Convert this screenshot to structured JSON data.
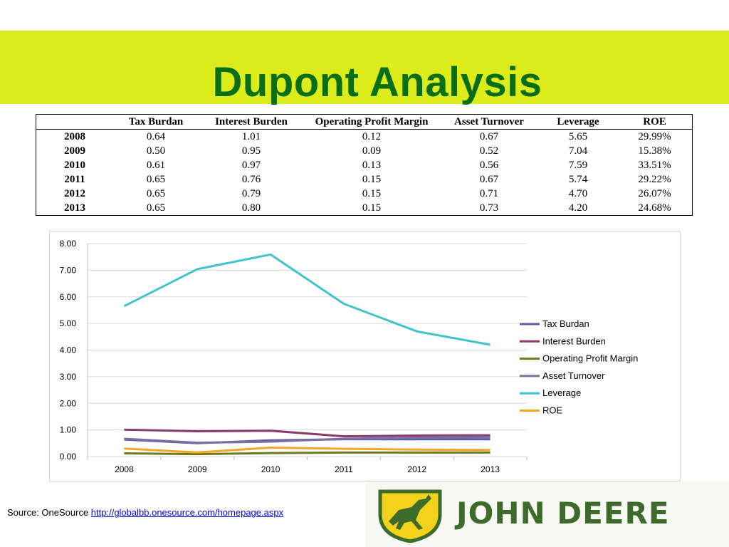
{
  "slide": {
    "title": "Dupont Analysis",
    "banner_color": "#dcec1a",
    "title_color": "#0a6e17"
  },
  "table": {
    "headers": [
      "",
      "Tax Burdan",
      "Interest Burden",
      "Operating Profit Margin",
      "Asset Turnover",
      "Leverage",
      "ROE"
    ],
    "rows": [
      [
        "2008",
        "0.64",
        "1.01",
        "0.12",
        "0.67",
        "5.65",
        "29.99%"
      ],
      [
        "2009",
        "0.50",
        "0.95",
        "0.09",
        "0.52",
        "7.04",
        "15.38%"
      ],
      [
        "2010",
        "0.61",
        "0.97",
        "0.13",
        "0.56",
        "7.59",
        "33.51%"
      ],
      [
        "2011",
        "0.65",
        "0.76",
        "0.15",
        "0.67",
        "5.74",
        "29.22%"
      ],
      [
        "2012",
        "0.65",
        "0.79",
        "0.15",
        "0.71",
        "4.70",
        "26.07%"
      ],
      [
        "2013",
        "0.65",
        "0.80",
        "0.15",
        "0.73",
        "4.20",
        "24.68%"
      ]
    ]
  },
  "chart_data": {
    "type": "line",
    "title": "",
    "xlabel": "",
    "ylabel": "",
    "categories": [
      "2008",
      "2009",
      "2010",
      "2011",
      "2012",
      "2013"
    ],
    "ylim": [
      0,
      8
    ],
    "yticks": [
      "0.00",
      "1.00",
      "2.00",
      "3.00",
      "4.00",
      "5.00",
      "6.00",
      "7.00",
      "8.00"
    ],
    "grid": true,
    "legend": "right",
    "series": [
      {
        "name": "Tax Burdan",
        "color": "#5b5f9e",
        "values": [
          0.64,
          0.5,
          0.61,
          0.65,
          0.65,
          0.65
        ]
      },
      {
        "name": "Interest Burden",
        "color": "#8e3a66",
        "values": [
          1.01,
          0.95,
          0.97,
          0.76,
          0.79,
          0.8
        ]
      },
      {
        "name": "Operating Profit Margin",
        "color": "#6f7a1a",
        "values": [
          0.12,
          0.09,
          0.13,
          0.15,
          0.15,
          0.15
        ]
      },
      {
        "name": "Asset Turnover",
        "color": "#7a6fa8",
        "values": [
          0.67,
          0.52,
          0.56,
          0.67,
          0.71,
          0.73
        ]
      },
      {
        "name": "Leverage",
        "color": "#40c4c9",
        "values": [
          5.65,
          7.04,
          7.59,
          5.74,
          4.7,
          4.2
        ]
      },
      {
        "name": "ROE",
        "color": "#f5a623",
        "values": [
          0.2999,
          0.1538,
          0.3351,
          0.2922,
          0.2607,
          0.2468
        ]
      }
    ]
  },
  "source": {
    "label": "Source: OneSource ",
    "link": "http://globalbb.onesource.com/homepage.aspx"
  },
  "logo": {
    "text": "JOHN DEERE",
    "green": "#3d6b2a",
    "yellow": "#f2d21b"
  }
}
